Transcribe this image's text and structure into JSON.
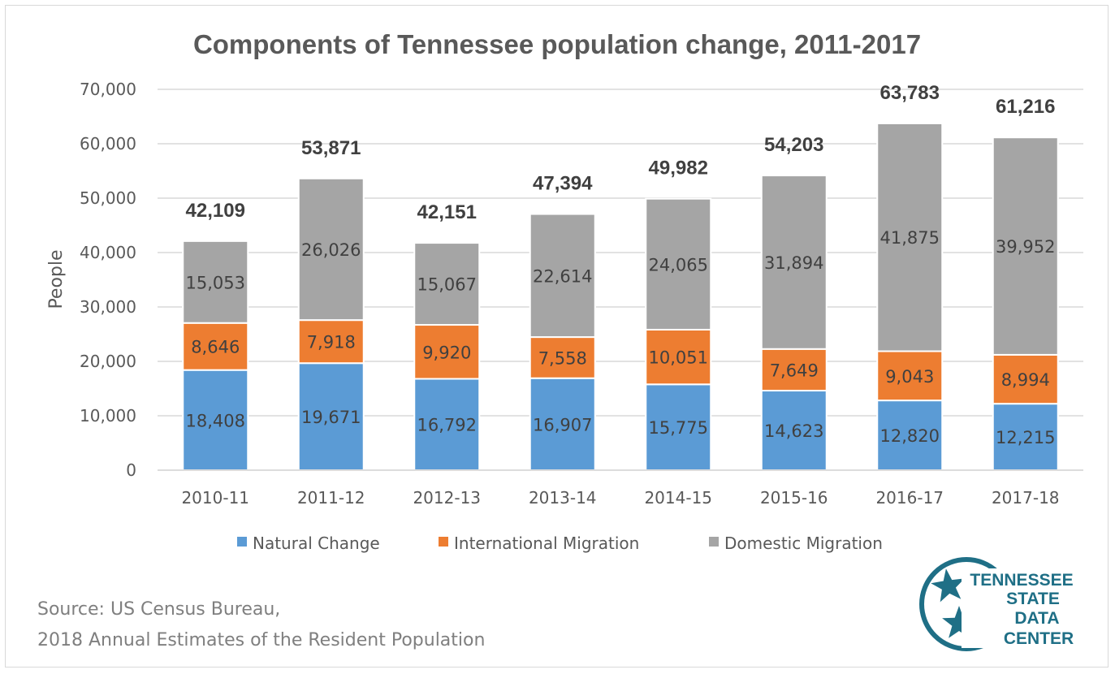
{
  "chart_data": {
    "type": "bar",
    "stacked": true,
    "title": "Components of Tennessee population change, 2011-2017",
    "xlabel": "",
    "ylabel": "People",
    "ylim": [
      0,
      70000
    ],
    "yticks": [
      0,
      10000,
      20000,
      30000,
      40000,
      50000,
      60000,
      70000
    ],
    "ytick_labels": [
      "0",
      "10,000",
      "20,000",
      "30,000",
      "40,000",
      "50,000",
      "60,000",
      "70,000"
    ],
    "grid": true,
    "legend_position": "bottom",
    "categories": [
      "2010-11",
      "2011-12",
      "2012-13",
      "2013-14",
      "2014-15",
      "2015-16",
      "2016-17",
      "2017-18"
    ],
    "series": [
      {
        "name": "Natural Change",
        "color": "#5b9bd5",
        "values": [
          18408,
          19671,
          16792,
          16907,
          15775,
          14623,
          12820,
          12215
        ],
        "labels": [
          "18,408",
          "19,671",
          "16,792",
          "16,907",
          "15,775",
          "14,623",
          "12,820",
          "12,215"
        ]
      },
      {
        "name": "International Migration",
        "color": "#ed7d31",
        "values": [
          8646,
          7918,
          9920,
          7558,
          10051,
          7649,
          9043,
          8994
        ],
        "labels": [
          "8,646",
          "7,918",
          "9,920",
          "7,558",
          "10,051",
          "7,649",
          "9,043",
          "8,994"
        ]
      },
      {
        "name": "Domestic Migration",
        "color": "#a5a5a5",
        "values": [
          15053,
          26026,
          15067,
          22614,
          24065,
          31894,
          41875,
          39952
        ],
        "labels": [
          "15,053",
          "26,026",
          "15,067",
          "22,614",
          "24,065",
          "31,894",
          "41,875",
          "39,952"
        ]
      }
    ],
    "totals": [
      42109,
      53871,
      42151,
      47394,
      49982,
      54203,
      63783,
      61216
    ],
    "total_labels": [
      "42,109",
      "53,871",
      "42,151",
      "47,394",
      "49,982",
      "54,203",
      "63,783",
      "61,216"
    ]
  },
  "source": {
    "line1": "Source:  US Census Bureau,",
    "line2": "2018 Annual Estimates of the Resident Population"
  },
  "logo": {
    "lines": [
      "TENNESSEE",
      "STATE",
      "DATA",
      "CENTER"
    ],
    "color": "#1f6f86",
    "icon": "tennessee-tristar-icon"
  }
}
